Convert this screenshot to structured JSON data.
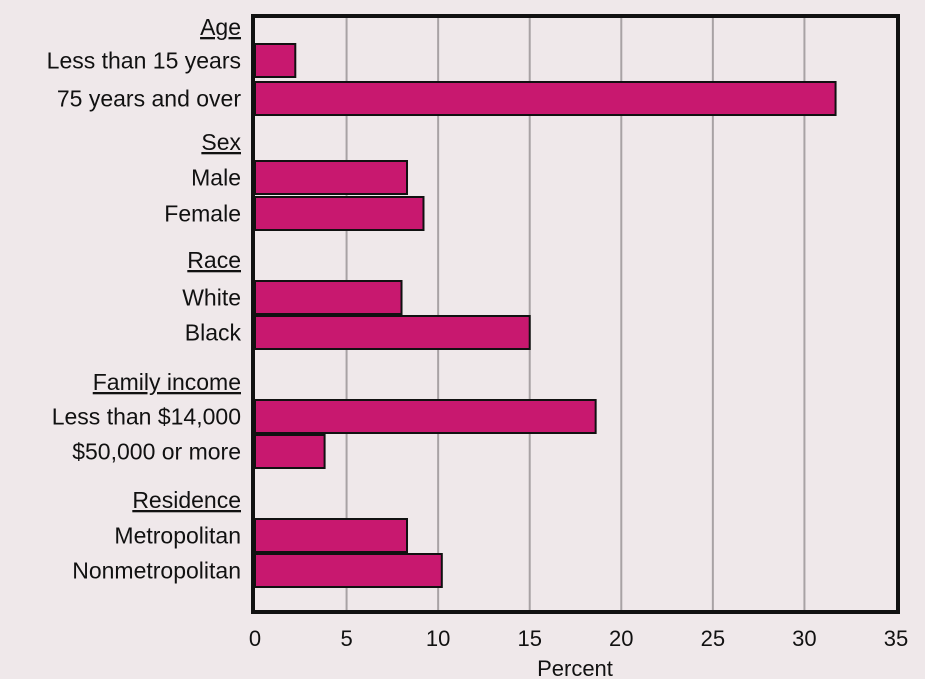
{
  "chart_data": {
    "type": "bar",
    "orientation": "horizontal",
    "title": "",
    "xlabel": "Percent",
    "ylabel": "",
    "xlim": [
      0,
      35
    ],
    "xticks": [
      "0",
      "5",
      "10",
      "15",
      "20",
      "25",
      "30",
      "35"
    ],
    "grid": "vertical",
    "bar_color": "#c8186f",
    "groups": [
      {
        "name": "Age",
        "items": [
          {
            "label": "Less than 15 years",
            "value": 2.2
          },
          {
            "label": "75 years and over",
            "value": 31.7
          }
        ]
      },
      {
        "name": "Sex",
        "items": [
          {
            "label": "Male",
            "value": 8.3
          },
          {
            "label": "Female",
            "value": 9.2
          }
        ]
      },
      {
        "name": "Race",
        "items": [
          {
            "label": "White",
            "value": 8.0
          },
          {
            "label": "Black",
            "value": 15.0
          }
        ]
      },
      {
        "name": "Family income",
        "items": [
          {
            "label": "Less than $14,000",
            "value": 18.6
          },
          {
            "label": "$50,000 or more",
            "value": 3.8
          }
        ]
      },
      {
        "name": "Residence",
        "items": [
          {
            "label": "Metropolitan",
            "value": 8.3
          },
          {
            "label": "Nonmetropolitan",
            "value": 10.2
          }
        ]
      }
    ]
  }
}
